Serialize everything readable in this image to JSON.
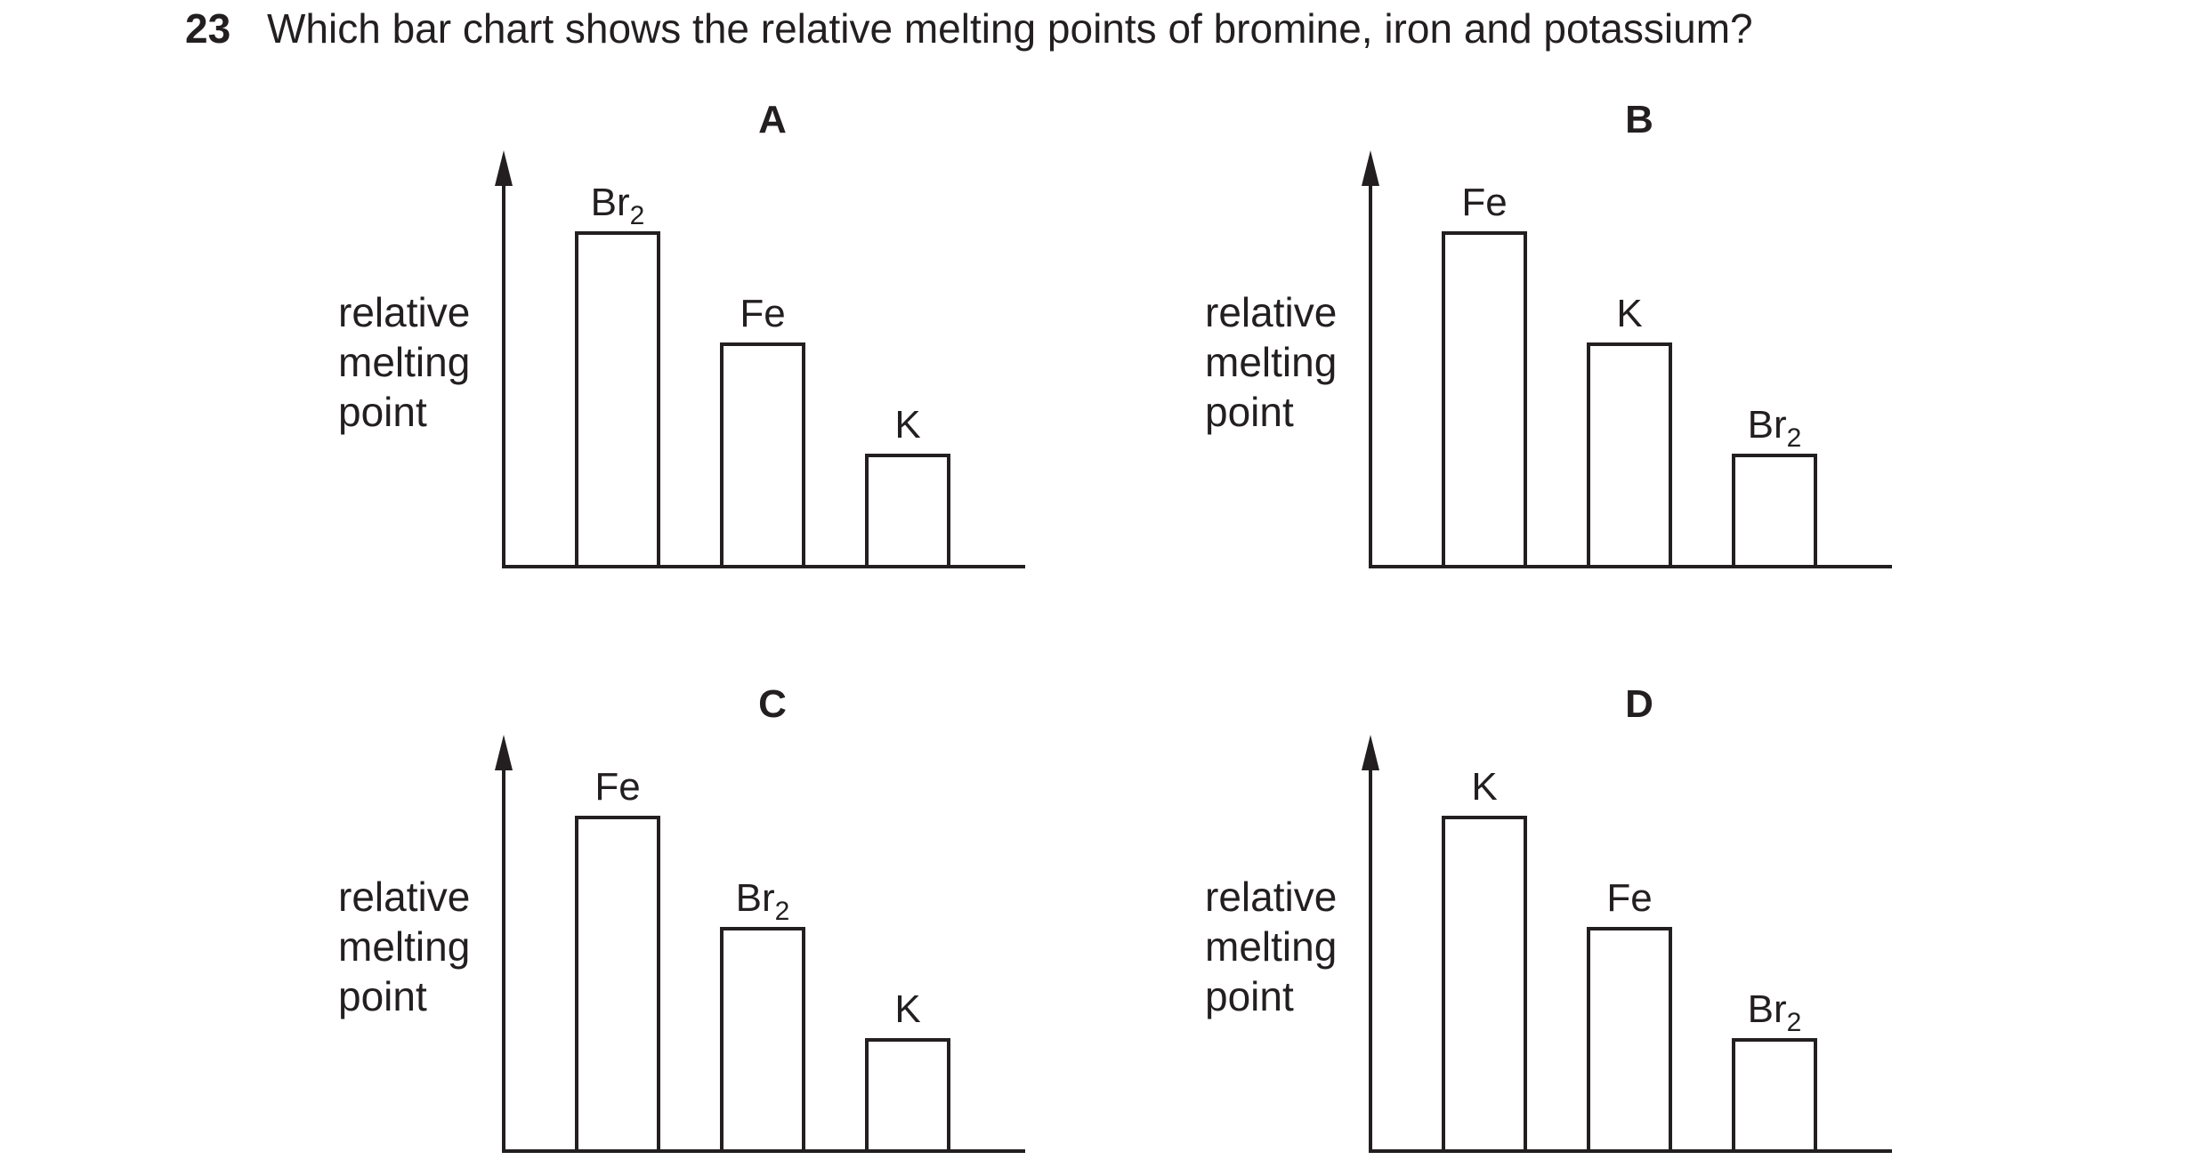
{
  "question": {
    "number": "23",
    "text": "Which bar chart shows the relative melting points of bromine, iron and potassium?"
  },
  "chart_data": [
    {
      "type": "bar",
      "title": "A",
      "ylabel": [
        "relative",
        "melting",
        "point"
      ],
      "xlabel": "",
      "categories": [
        "Br2",
        "Fe",
        "K"
      ],
      "values": [
        3,
        2,
        1
      ],
      "ylim": [
        0,
        3.6
      ],
      "grid": false
    },
    {
      "type": "bar",
      "title": "B",
      "ylabel": [
        "relative",
        "melting",
        "point"
      ],
      "xlabel": "",
      "categories": [
        "Fe",
        "K",
        "Br2"
      ],
      "values": [
        3,
        2,
        1
      ],
      "ylim": [
        0,
        3.6
      ],
      "grid": false
    },
    {
      "type": "bar",
      "title": "C",
      "ylabel": [
        "relative",
        "melting",
        "point"
      ],
      "xlabel": "",
      "categories": [
        "Fe",
        "Br2",
        "K"
      ],
      "values": [
        3,
        2,
        1
      ],
      "ylim": [
        0,
        3.6
      ],
      "grid": false
    },
    {
      "type": "bar",
      "title": "D",
      "ylabel": [
        "relative",
        "melting",
        "point"
      ],
      "xlabel": "",
      "categories": [
        "K",
        "Fe",
        "Br2"
      ],
      "values": [
        3,
        2,
        1
      ],
      "ylim": [
        0,
        3.6
      ],
      "grid": false
    }
  ]
}
